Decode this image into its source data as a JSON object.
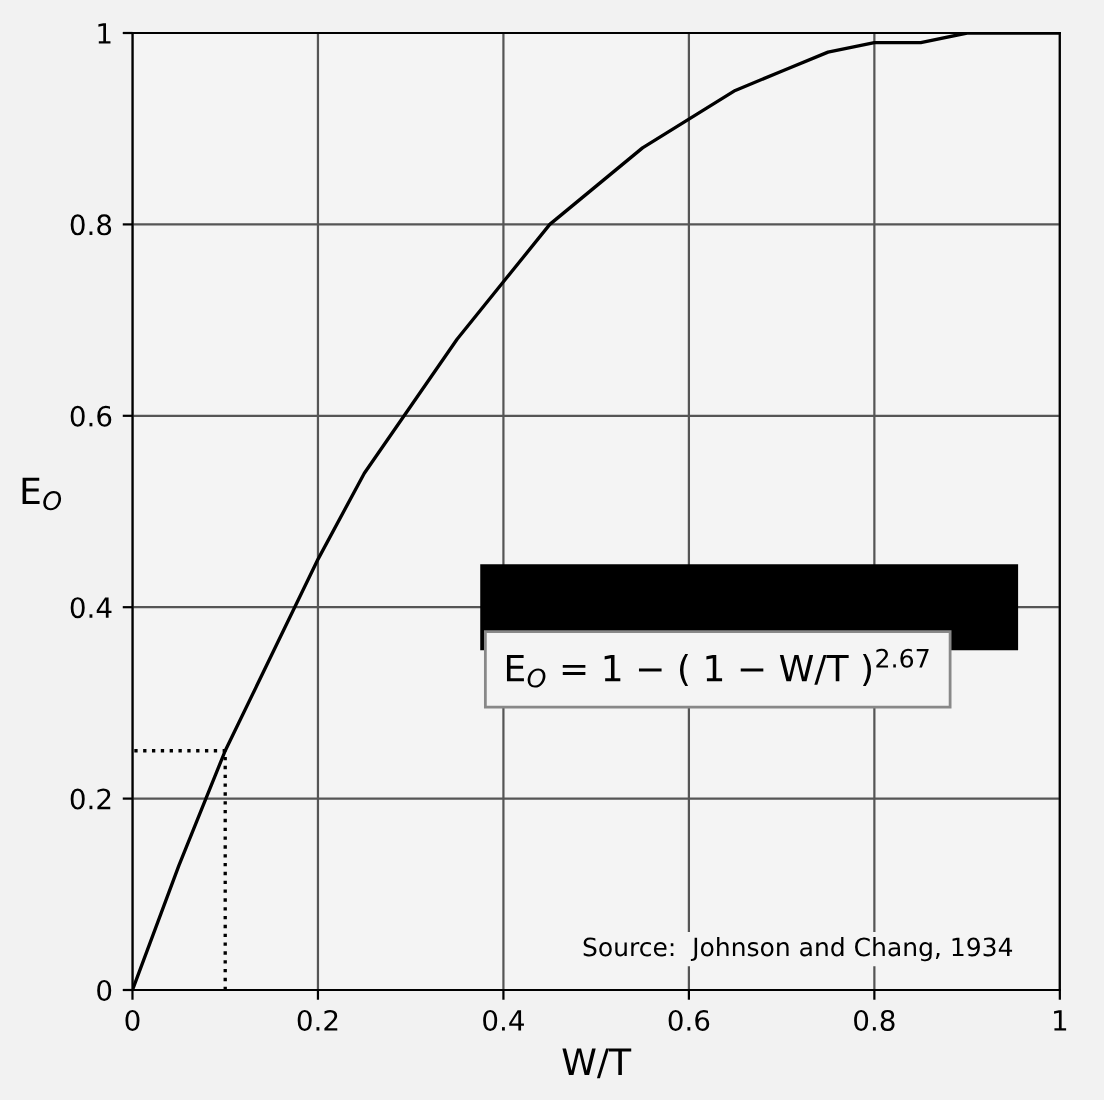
{
  "chart_data": {
    "type": "line",
    "xlabel": "W/T",
    "ylabel": "E$_{O}$",
    "xlim": [
      0,
      1
    ],
    "ylim": [
      0,
      1
    ],
    "xticks": [
      0,
      0.2,
      0.4,
      0.6,
      0.8,
      1
    ],
    "yticks": [
      0,
      0.2,
      0.4,
      0.6,
      0.8,
      1
    ],
    "grid": true,
    "legend": false,
    "series": [
      {
        "color": "#000000",
        "line_style": "solid",
        "x": [
          0,
          0.05,
          0.1,
          0.15,
          0.2,
          0.25,
          0.3,
          0.35,
          0.4,
          0.45,
          0.5,
          0.55,
          0.6,
          0.65,
          0.7,
          0.75,
          0.8,
          0.85,
          0.9,
          0.95,
          1
        ],
        "values": [
          0,
          0.13,
          0.25,
          0.35,
          0.45,
          0.54,
          0.61,
          0.68,
          0.74,
          0.8,
          0.84,
          0.88,
          0.91,
          0.94,
          0.96,
          0.98,
          0.99,
          0.99,
          1.0,
          1.0,
          1.0
        ]
      },
      {
        "color": "#000000",
        "line_style": "dotted",
        "x": [
          0.1,
          0.1,
          0
        ],
        "values": [
          0,
          0.25,
          0.25
        ]
      }
    ],
    "annotations": [
      {
        "text": "E$_{O}$ = 1 − ( 1 − W/T )$^{2.67}$"
      },
      {
        "text": "Source:  Johnson and Chang, 1934"
      }
    ]
  }
}
